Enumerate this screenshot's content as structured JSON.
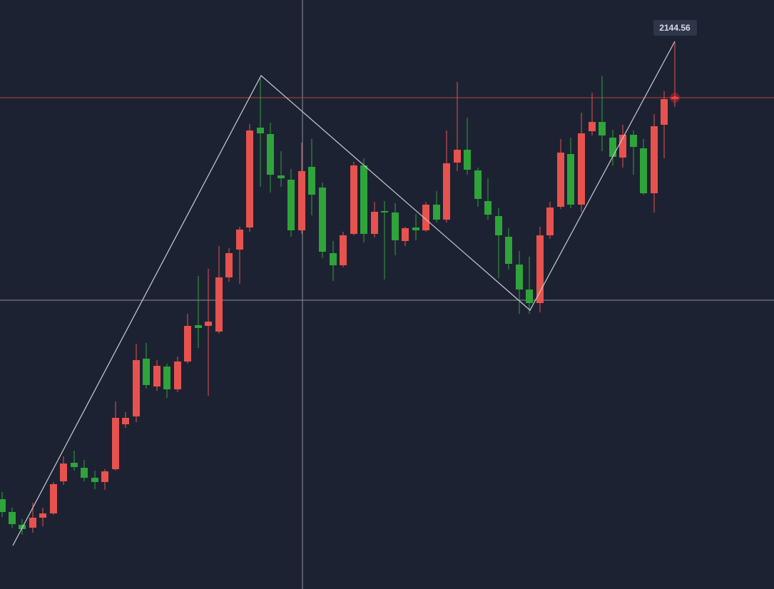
{
  "tooltip": "2144.56"
}
